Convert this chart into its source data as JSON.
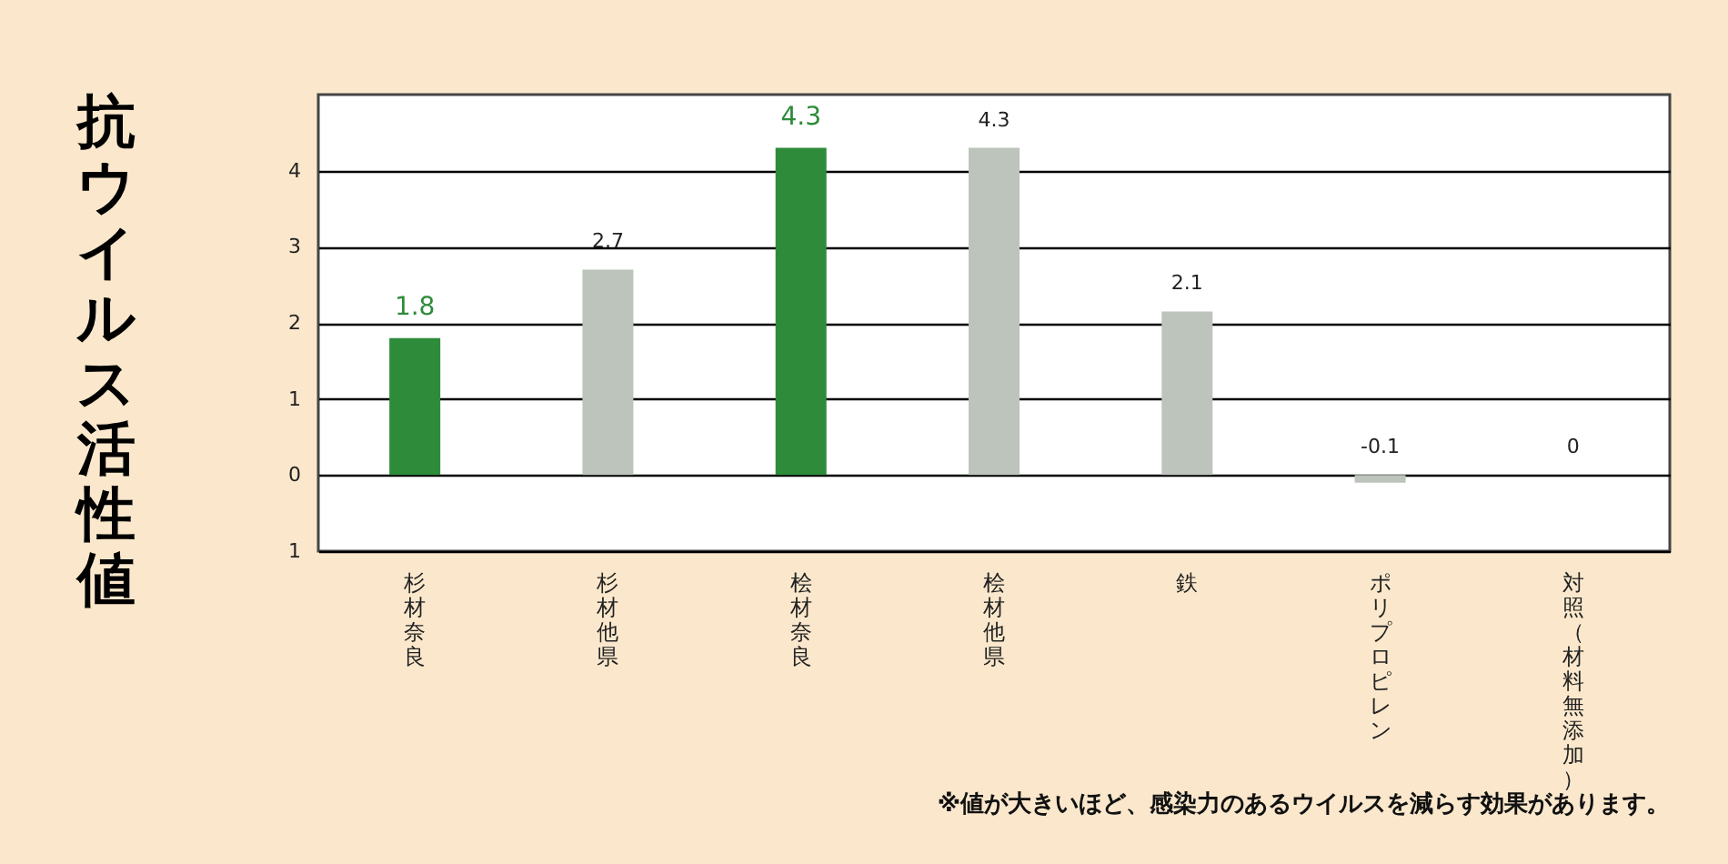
{
  "chart_data": {
    "type": "bar",
    "ylabel": "抗ウイルス活性値",
    "annotations": [
      "※値が大きいほど、感染力のあるウイルスを減らす効果があります。"
    ],
    "categories": [
      "杉材奈良",
      "杉材他県",
      "桧材奈良",
      "桧材他県",
      "鉄",
      "ポリプロピレン",
      "対照（材料無添加）"
    ],
    "values": [
      1.8,
      2.7,
      4.3,
      4.3,
      2.15,
      -0.1,
      0
    ],
    "colors": [
      "#2e8b3a",
      "#bcc4bb",
      "#2e8b3a",
      "#bcc4bb",
      "#bcc4bb",
      "#bcc4bb",
      "#bcc4bb"
    ],
    "value_labels": [
      "1.8",
      "2.7",
      "4.3",
      "4.3",
      "2.1",
      "-0.1",
      "0"
    ],
    "ylim": [
      -1,
      5
    ],
    "yticks": [
      {
        "value": -1,
        "label": "1"
      },
      0,
      1,
      2,
      3,
      4
    ],
    "grid": "y"
  }
}
